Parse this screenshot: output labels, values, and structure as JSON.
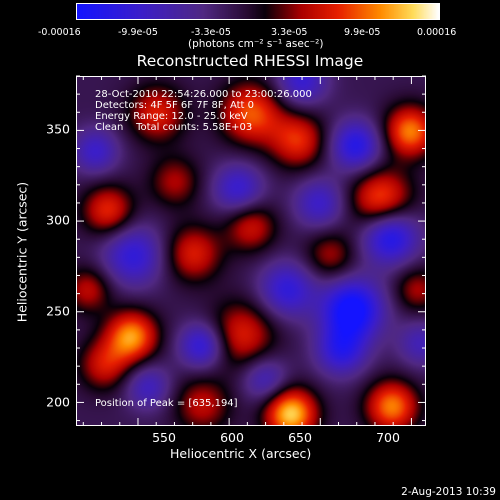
{
  "chart_data": {
    "type": "heatmap",
    "title": "Reconstructed RHESSI Image",
    "xlabel": "Heliocentric X (arcsec)",
    "ylabel": "Heliocentric Y (arcsec)",
    "xlim": [
      516,
      708
    ],
    "ylim": [
      187,
      380
    ],
    "x_ticks": [
      "550",
      "600",
      "650",
      "700"
    ],
    "y_ticks": [
      "200",
      "250",
      "300",
      "350"
    ],
    "colorbar": {
      "ticks": [
        "-0.00016",
        "-9.9e-05",
        "-3.3e-05",
        "3.3e-05",
        "9.9e-05",
        "0.00016"
      ],
      "unit": "(photons cm⁻² s⁻¹ asec⁻²)",
      "range": [
        -0.00016,
        0.00016
      ]
    },
    "annotations": {
      "time": "28-Oct-2010 22:54:26.000 to 23:00:26.000",
      "detectors": "Detectors: 4F 5F 6F 7F 8F, Att 0",
      "energy": "Energy Range: 12.0 - 25.0 keV",
      "clean": "Clean    Total counts: 5.58E+03",
      "peak": "Position of Peak = [635,194]"
    },
    "peak": [
      635,
      194
    ],
    "blobs": [
      {
        "x": 634,
        "y": 193,
        "v": 1.0,
        "s": 10
      },
      {
        "x": 546,
        "y": 236,
        "v": 0.85,
        "s": 10
      },
      {
        "x": 690,
        "y": 197,
        "v": 0.8,
        "s": 10
      },
      {
        "x": 700,
        "y": 350,
        "v": 0.8,
        "s": 10
      },
      {
        "x": 684,
        "y": 312,
        "v": 0.72,
        "s": 12
      },
      {
        "x": 612,
        "y": 360,
        "v": 0.7,
        "s": 12
      },
      {
        "x": 638,
        "y": 345,
        "v": 0.6,
        "s": 11
      },
      {
        "x": 533,
        "y": 306,
        "v": 0.6,
        "s": 10
      },
      {
        "x": 607,
        "y": 237,
        "v": 0.55,
        "s": 13
      },
      {
        "x": 580,
        "y": 282,
        "v": 0.55,
        "s": 11
      },
      {
        "x": 612,
        "y": 297,
        "v": 0.5,
        "s": 10
      },
      {
        "x": 560,
        "y": 360,
        "v": 0.55,
        "s": 11
      },
      {
        "x": 531,
        "y": 220,
        "v": 0.5,
        "s": 10
      },
      {
        "x": 585,
        "y": 198,
        "v": 0.45,
        "s": 11
      },
      {
        "x": 656,
        "y": 281,
        "v": 0.4,
        "s": 10
      },
      {
        "x": 522,
        "y": 262,
        "v": 0.45,
        "s": 9
      },
      {
        "x": 570,
        "y": 322,
        "v": 0.4,
        "s": 10
      },
      {
        "x": 704,
        "y": 262,
        "v": 0.4,
        "s": 9
      },
      {
        "x": 668,
        "y": 251,
        "v": -0.95,
        "s": 12
      },
      {
        "x": 689,
        "y": 292,
        "v": -0.8,
        "s": 11
      },
      {
        "x": 670,
        "y": 342,
        "v": -0.7,
        "s": 10
      },
      {
        "x": 662,
        "y": 228,
        "v": -0.6,
        "s": 10
      },
      {
        "x": 585,
        "y": 231,
        "v": -0.65,
        "s": 9
      },
      {
        "x": 547,
        "y": 281,
        "v": -0.6,
        "s": 12
      },
      {
        "x": 632,
        "y": 262,
        "v": -0.6,
        "s": 11
      },
      {
        "x": 605,
        "y": 318,
        "v": -0.55,
        "s": 10
      },
      {
        "x": 640,
        "y": 378,
        "v": -0.55,
        "s": 10
      },
      {
        "x": 620,
        "y": 212,
        "v": -0.45,
        "s": 9
      },
      {
        "x": 526,
        "y": 339,
        "v": -0.5,
        "s": 9
      },
      {
        "x": 555,
        "y": 208,
        "v": -0.45,
        "s": 9
      },
      {
        "x": 650,
        "y": 310,
        "v": -0.5,
        "s": 10
      },
      {
        "x": 706,
        "y": 232,
        "v": -0.4,
        "s": 9
      }
    ]
  },
  "footer": {
    "date": "2-Aug-2013 10:39"
  }
}
